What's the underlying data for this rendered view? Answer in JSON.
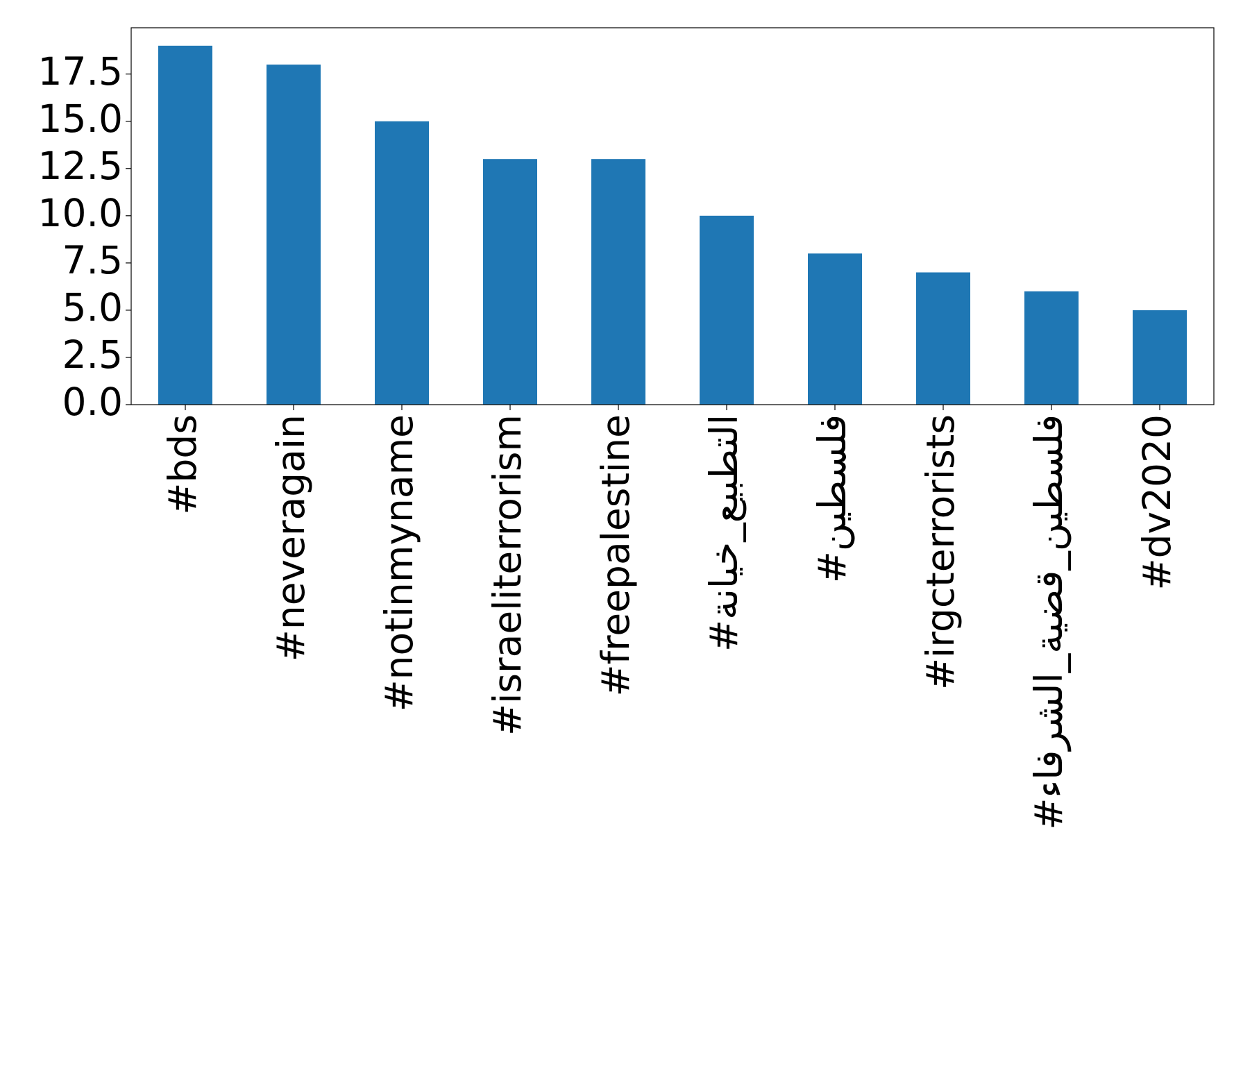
{
  "chart_data": {
    "type": "bar",
    "categories": [
      "#bds",
      "#neveragain",
      "#notinmyname",
      "#israeliterrorism",
      "#freepalestine",
      "#التطبيع_خيانة",
      "#فلسطين",
      "#irgcterrorists",
      "#فلسطين_قضية_الشرفاء",
      "#dv2020"
    ],
    "values": [
      19,
      18,
      15,
      13,
      13,
      10,
      8,
      7,
      6,
      5
    ],
    "color": "#1f77b4",
    "ylim": [
      0,
      19.95
    ],
    "yticks": [
      {
        "value": 0,
        "label": "0.0"
      },
      {
        "value": 2.5,
        "label": "2.5"
      },
      {
        "value": 5,
        "label": "5.0"
      },
      {
        "value": 7.5,
        "label": "7.5"
      },
      {
        "value": 10,
        "label": "10.0"
      },
      {
        "value": 12.5,
        "label": "12.5"
      },
      {
        "value": 15,
        "label": "15.0"
      },
      {
        "value": 17.5,
        "label": "17.5"
      }
    ],
    "grid": false
  }
}
